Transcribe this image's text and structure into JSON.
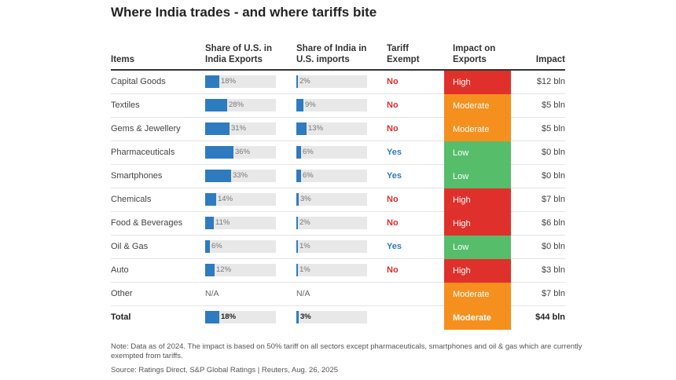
{
  "title": "Where India trades - and where tariffs bite",
  "headers": {
    "items": "Items",
    "us_share": "Share of U.S. in India Exports",
    "india_share": "Share of India in U.S. imports",
    "tariff": "Tariff Exempt",
    "impact": "Impact on Exports",
    "amount": "Impact"
  },
  "colors": {
    "High": "#e0302b",
    "Moderate": "#f5901e",
    "Low": "#56bd6b",
    "bar": "#2f7bc0",
    "bar_bg": "#e8e8e8"
  },
  "chart_data": {
    "type": "table",
    "columns": [
      "Items",
      "Share of U.S. in India Exports",
      "Share of India in U.S. imports",
      "Tariff Exempt",
      "Impact on Exports",
      "Impact"
    ],
    "rows": [
      {
        "item": "Capital Goods",
        "us_share": 18,
        "us_label": "18%",
        "in_share": 2,
        "in_label": "2%",
        "tariff": "No",
        "impact": "High",
        "amount": "$12 bln"
      },
      {
        "item": "Textiles",
        "us_share": 28,
        "us_label": "28%",
        "in_share": 9,
        "in_label": "9%",
        "tariff": "No",
        "impact": "Moderate",
        "amount": "$5 bln"
      },
      {
        "item": "Gems & Jewellery",
        "us_share": 31,
        "us_label": "31%",
        "in_share": 13,
        "in_label": "13%",
        "tariff": "No",
        "impact": "Moderate",
        "amount": "$5 bln"
      },
      {
        "item": "Pharmaceuticals",
        "us_share": 36,
        "us_label": "36%",
        "in_share": 6,
        "in_label": "6%",
        "tariff": "Yes",
        "impact": "Low",
        "amount": "$0 bln"
      },
      {
        "item": "Smartphones",
        "us_share": 33,
        "us_label": "33%",
        "in_share": 6,
        "in_label": "6%",
        "tariff": "Yes",
        "impact": "Low",
        "amount": "$0 bln"
      },
      {
        "item": "Chemicals",
        "us_share": 14,
        "us_label": "14%",
        "in_share": 3,
        "in_label": "3%",
        "tariff": "No",
        "impact": "High",
        "amount": "$7 bln"
      },
      {
        "item": "Food & Beverages",
        "us_share": 11,
        "us_label": "11%",
        "in_share": 2,
        "in_label": "2%",
        "tariff": "No",
        "impact": "High",
        "amount": "$6 bln"
      },
      {
        "item": "Oil & Gas",
        "us_share": 6,
        "us_label": "6%",
        "in_share": 1,
        "in_label": "1%",
        "tariff": "Yes",
        "impact": "Low",
        "amount": "$0 bln"
      },
      {
        "item": "Auto",
        "us_share": 12,
        "us_label": "12%",
        "in_share": 1,
        "in_label": "1%",
        "tariff": "No",
        "impact": "High",
        "amount": "$3 bln"
      },
      {
        "item": "Other",
        "us_share": null,
        "us_label": "N/A",
        "in_share": null,
        "in_label": "N/A",
        "tariff": "",
        "impact": "Moderate",
        "amount": "$7 bln"
      },
      {
        "item": "Total",
        "us_share": 18,
        "us_label": "18%",
        "in_share": 3,
        "in_label": "3%",
        "tariff": "",
        "impact": "Moderate",
        "amount": "$44 bln",
        "total": true
      }
    ]
  },
  "note": "Note: Data as of 2024. The impact is based on 50% tariff on all sectors except pharmaceuticals, smartphones and oil & gas which are currently exempted from tariffs.",
  "source": "Source: Ratings Direct, S&P Global Ratings | Reuters, Aug. 26, 2025"
}
